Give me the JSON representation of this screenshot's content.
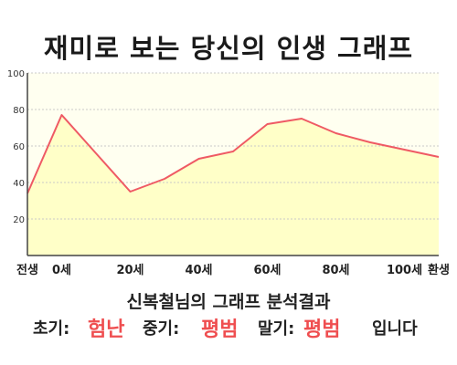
{
  "page": {
    "title": "재미로 보는 당신의 인생 그래프",
    "summary_line": "신복철님의 그래프 분석결과",
    "verdict": {
      "early_label": "초기:",
      "early_value": "험난",
      "mid_label": "중기:",
      "mid_value": "평범",
      "late_label": "말기:",
      "late_value": "평범",
      "suffix": "입니다"
    }
  },
  "colors": {
    "plot_bg": "#fffff0",
    "fill": "#ffffc8",
    "line": "#ef5a64",
    "grid": "#c8c8c8",
    "highlight": "#ef4e50"
  },
  "chart_data": {
    "type": "area",
    "title": "",
    "xlabel": "",
    "ylabel": "",
    "x": [
      -10,
      0,
      10,
      20,
      30,
      40,
      50,
      60,
      70,
      80,
      90,
      100,
      110
    ],
    "x_display": [
      "전생",
      "0세",
      "",
      "20세",
      "",
      "40세",
      "",
      "60세",
      "",
      "80세",
      "",
      "100세",
      "환생"
    ],
    "series": [
      {
        "values": [
          34,
          77,
          56,
          35,
          42,
          53,
          57,
          72,
          75,
          67,
          62,
          58,
          54
        ]
      }
    ],
    "xlim": [
      -10,
      110
    ],
    "ylim": [
      0,
      100
    ],
    "yticks": [
      20,
      40,
      60,
      80,
      100
    ],
    "grid": true,
    "legend": "none"
  }
}
